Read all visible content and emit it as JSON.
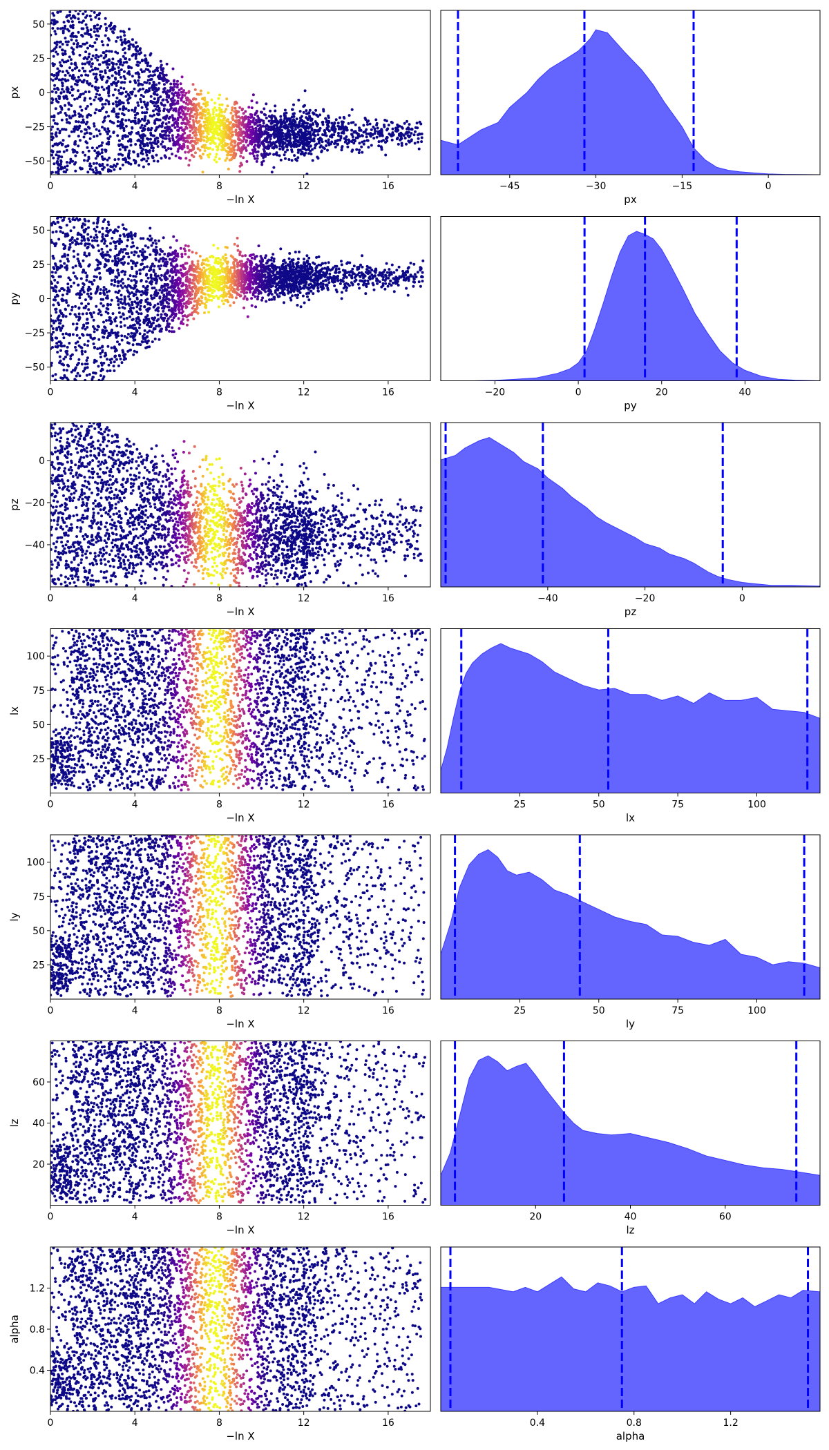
{
  "figure": {
    "background": "#ffffff"
  },
  "colors": {
    "kde_fill": "#6464ff",
    "kde_edge": "#3b3bff",
    "quantile_line": "#0000ff",
    "cmap": "plasma"
  },
  "chart_data": [
    {
      "type": "scatter",
      "name": "trace-px",
      "xlabel": "−ln X",
      "ylabel": "px",
      "xlim": [
        0,
        18
      ],
      "ylim": [
        -60,
        60
      ],
      "xticks": [
        0,
        4,
        8,
        12,
        16
      ],
      "xtick_labels": [
        "0",
        "4",
        "8",
        "12",
        "16"
      ],
      "yticks": [
        -50,
        -25,
        0,
        25,
        50
      ],
      "ytick_labels": [
        "−50",
        "−25",
        "0",
        "25",
        "50"
      ],
      "posterior_center": -30,
      "posterior_spread": 11,
      "initial_range": [
        -60,
        60
      ],
      "max_lnx": 17.6,
      "color_peak_lnx": 7.8,
      "color_width_lnx": 1.4
    },
    {
      "type": "area",
      "name": "kde-px",
      "xlabel": "px",
      "xlim": [
        -57,
        9
      ],
      "ylim": [
        0,
        1.1
      ],
      "xticks": [
        -45,
        -30,
        -15,
        0
      ],
      "xtick_labels": [
        "−45",
        "−30",
        "−15",
        "0"
      ],
      "x": [
        -57,
        -55,
        -54,
        -52,
        -50,
        -47,
        -45,
        -42,
        -40,
        -38,
        -35,
        -33,
        -31,
        -30,
        -28,
        -25,
        -22,
        -20,
        -18,
        -15,
        -13,
        -11,
        -9,
        -7,
        -5,
        -2,
        0,
        3,
        6,
        9
      ],
      "y": [
        0.23,
        0.21,
        0.2,
        0.25,
        0.3,
        0.35,
        0.45,
        0.55,
        0.64,
        0.71,
        0.78,
        0.83,
        0.91,
        0.97,
        0.95,
        0.82,
        0.7,
        0.6,
        0.48,
        0.32,
        0.18,
        0.1,
        0.05,
        0.03,
        0.02,
        0.01,
        0.005,
        0.002,
        0.001,
        0
      ],
      "quantiles": [
        -54,
        -32,
        -13
      ]
    },
    {
      "type": "scatter",
      "name": "trace-py",
      "xlabel": "−ln X",
      "ylabel": "py",
      "xlim": [
        0,
        18
      ],
      "ylim": [
        -60,
        60
      ],
      "xticks": [
        0,
        4,
        8,
        12,
        16
      ],
      "xtick_labels": [
        "0",
        "4",
        "8",
        "12",
        "16"
      ],
      "yticks": [
        -50,
        -25,
        0,
        25,
        50
      ],
      "ytick_labels": [
        "−50",
        "−25",
        "0",
        "25",
        "50"
      ],
      "posterior_center": 16,
      "posterior_spread": 9,
      "initial_range": [
        -60,
        60
      ],
      "max_lnx": 17.7,
      "color_peak_lnx": 7.8,
      "color_width_lnx": 1.4
    },
    {
      "type": "area",
      "name": "kde-py",
      "xlabel": "py",
      "xlim": [
        -33,
        58
      ],
      "ylim": [
        0,
        1.1
      ],
      "xticks": [
        -20,
        0,
        20,
        40
      ],
      "xtick_labels": [
        "−20",
        "0",
        "20",
        "40"
      ],
      "x": [
        -33,
        -25,
        -20,
        -15,
        -10,
        -5,
        -2,
        0,
        2,
        4,
        6,
        8,
        10,
        12,
        14,
        16,
        18,
        20,
        22,
        25,
        28,
        31,
        34,
        37,
        40,
        44,
        48,
        52,
        58
      ],
      "y": [
        0,
        0,
        0.003,
        0.01,
        0.02,
        0.05,
        0.08,
        0.12,
        0.2,
        0.35,
        0.52,
        0.7,
        0.86,
        0.97,
        1.0,
        0.98,
        0.95,
        0.88,
        0.78,
        0.62,
        0.45,
        0.32,
        0.2,
        0.12,
        0.07,
        0.03,
        0.01,
        0.004,
        0
      ],
      "quantiles": [
        1.5,
        16,
        38
      ]
    },
    {
      "type": "scatter",
      "name": "trace-pz",
      "xlabel": "−ln X",
      "ylabel": "pz",
      "xlim": [
        0,
        18
      ],
      "ylim": [
        -60,
        18
      ],
      "xticks": [
        0,
        4,
        8,
        12,
        16
      ],
      "xtick_labels": [
        "0",
        "4",
        "8",
        "12",
        "16"
      ],
      "yticks": [
        -40,
        -20,
        0
      ],
      "ytick_labels": [
        "−40",
        "−20",
        "0"
      ],
      "posterior_center": -35,
      "posterior_spread": 16,
      "initial_range": [
        -60,
        18
      ],
      "max_lnx": 17.6,
      "color_peak_lnx": 7.8,
      "color_width_lnx": 1.4
    },
    {
      "type": "area",
      "name": "kde-pz",
      "xlabel": "pz",
      "xlim": [
        -62,
        16
      ],
      "ylim": [
        0,
        1.1
      ],
      "xticks": [
        -40,
        -20,
        0
      ],
      "xtick_labels": [
        "−40",
        "−20",
        "0"
      ],
      "x": [
        -62,
        -59,
        -57,
        -54,
        -52,
        -50,
        -47,
        -45,
        -42,
        -40,
        -37,
        -35,
        -32,
        -30,
        -28,
        -25,
        -22,
        -20,
        -17,
        -15,
        -12,
        -10,
        -7,
        -5,
        -3,
        0,
        3,
        6,
        10,
        16
      ],
      "y": [
        0.85,
        0.88,
        0.93,
        0.98,
        1.0,
        0.96,
        0.9,
        0.84,
        0.79,
        0.73,
        0.66,
        0.6,
        0.53,
        0.47,
        0.43,
        0.38,
        0.33,
        0.29,
        0.26,
        0.22,
        0.19,
        0.16,
        0.1,
        0.07,
        0.05,
        0.03,
        0.02,
        0.01,
        0.01,
        0.005
      ],
      "quantiles": [
        -61,
        -41,
        -4
      ]
    },
    {
      "type": "scatter",
      "name": "trace-lx",
      "xlabel": "−ln X",
      "ylabel": "lx",
      "xlim": [
        0,
        18
      ],
      "ylim": [
        0,
        120
      ],
      "xticks": [
        0,
        4,
        8,
        12,
        16
      ],
      "xtick_labels": [
        "0",
        "4",
        "8",
        "12",
        "16"
      ],
      "yticks": [
        25,
        50,
        75,
        100
      ],
      "ytick_labels": [
        "25",
        "50",
        "75",
        "100"
      ],
      "posterior_center": null,
      "posterior_spread": null,
      "initial_range": [
        2,
        120
      ],
      "max_lnx": 17.8,
      "color_peak_lnx": 7.8,
      "color_width_lnx": 1.4
    },
    {
      "type": "area",
      "name": "kde-lx",
      "xlabel": "lx",
      "xlim": [
        0,
        120
      ],
      "ylim": [
        0,
        1.1
      ],
      "xticks": [
        25,
        50,
        75,
        100
      ],
      "xtick_labels": [
        "25",
        "50",
        "75",
        "100"
      ],
      "x": [
        0,
        2,
        4,
        6,
        8,
        10,
        13,
        16,
        19,
        22,
        25,
        28,
        32,
        36,
        40,
        45,
        50,
        55,
        60,
        65,
        70,
        75,
        80,
        85,
        90,
        95,
        100,
        105,
        110,
        115,
        120
      ],
      "y": [
        0.15,
        0.3,
        0.5,
        0.68,
        0.8,
        0.87,
        0.93,
        0.97,
        1.0,
        0.97,
        0.95,
        0.93,
        0.88,
        0.81,
        0.77,
        0.72,
        0.69,
        0.7,
        0.66,
        0.66,
        0.62,
        0.65,
        0.6,
        0.67,
        0.62,
        0.62,
        0.64,
        0.56,
        0.55,
        0.54,
        0.5
      ],
      "quantiles": [
        6.5,
        53,
        116
      ]
    },
    {
      "type": "scatter",
      "name": "trace-ly",
      "xlabel": "−ln X",
      "ylabel": "ly",
      "xlim": [
        0,
        18
      ],
      "ylim": [
        0,
        120
      ],
      "xticks": [
        0,
        4,
        8,
        12,
        16
      ],
      "xtick_labels": [
        "0",
        "4",
        "8",
        "12",
        "16"
      ],
      "yticks": [
        25,
        50,
        75,
        100
      ],
      "ytick_labels": [
        "25",
        "50",
        "75",
        "100"
      ],
      "posterior_center": null,
      "posterior_spread": null,
      "initial_range": [
        2,
        120
      ],
      "max_lnx": 17.7,
      "color_peak_lnx": 7.8,
      "color_width_lnx": 1.4
    },
    {
      "type": "area",
      "name": "kde-ly",
      "xlabel": "ly",
      "xlim": [
        0,
        120
      ],
      "ylim": [
        0,
        1.1
      ],
      "xticks": [
        25,
        50,
        75,
        100
      ],
      "xtick_labels": [
        "25",
        "50",
        "75",
        "100"
      ],
      "x": [
        0,
        3,
        6,
        9,
        12,
        15,
        18,
        21,
        24,
        28,
        32,
        36,
        40,
        45,
        50,
        55,
        60,
        65,
        70,
        75,
        80,
        85,
        90,
        95,
        100,
        105,
        110,
        115,
        120
      ],
      "y": [
        0.3,
        0.5,
        0.75,
        0.9,
        0.97,
        1.0,
        0.95,
        0.86,
        0.83,
        0.85,
        0.8,
        0.73,
        0.7,
        0.65,
        0.6,
        0.55,
        0.52,
        0.5,
        0.43,
        0.42,
        0.38,
        0.36,
        0.4,
        0.3,
        0.28,
        0.23,
        0.25,
        0.24,
        0.21
      ],
      "quantiles": [
        4.5,
        44,
        115
      ]
    },
    {
      "type": "scatter",
      "name": "trace-lz",
      "xlabel": "−ln X",
      "ylabel": "lz",
      "xlim": [
        0,
        18
      ],
      "ylim": [
        0,
        80
      ],
      "xticks": [
        0,
        4,
        8,
        12,
        16
      ],
      "xtick_labels": [
        "0",
        "4",
        "8",
        "12",
        "16"
      ],
      "yticks": [
        20,
        40,
        60
      ],
      "ytick_labels": [
        "20",
        "40",
        "60"
      ],
      "posterior_center": null,
      "posterior_spread": null,
      "initial_range": [
        1,
        80
      ],
      "max_lnx": 17.8,
      "color_peak_lnx": 7.8,
      "color_width_lnx": 1.4
    },
    {
      "type": "area",
      "name": "kde-lz",
      "xlabel": "lz",
      "xlim": [
        0,
        80
      ],
      "ylim": [
        0,
        1.1
      ],
      "xticks": [
        20,
        40,
        60
      ],
      "xtick_labels": [
        "20",
        "40",
        "60"
      ],
      "x": [
        0,
        2,
        4,
        6,
        8,
        10,
        12,
        14,
        16,
        18,
        20,
        22,
        24,
        26,
        28,
        30,
        33,
        36,
        40,
        44,
        48,
        52,
        56,
        60,
        64,
        68,
        72,
        76,
        80
      ],
      "y": [
        0.2,
        0.35,
        0.6,
        0.85,
        0.97,
        1.0,
        0.96,
        0.9,
        0.93,
        0.95,
        0.87,
        0.78,
        0.7,
        0.62,
        0.55,
        0.5,
        0.48,
        0.47,
        0.48,
        0.45,
        0.42,
        0.38,
        0.33,
        0.3,
        0.27,
        0.25,
        0.24,
        0.22,
        0.2
      ],
      "quantiles": [
        3,
        26,
        75
      ]
    },
    {
      "type": "scatter",
      "name": "trace-alpha",
      "xlabel": "−ln X",
      "ylabel": "alpha",
      "xlim": [
        0,
        18
      ],
      "ylim": [
        0,
        1.6
      ],
      "xticks": [
        0,
        4,
        8,
        12,
        16
      ],
      "xtick_labels": [
        "0",
        "4",
        "8",
        "12",
        "16"
      ],
      "yticks": [
        0.4,
        0.8,
        1.2
      ],
      "ytick_labels": [
        "0.4",
        "0.8",
        "1.2"
      ],
      "posterior_center": null,
      "posterior_spread": null,
      "initial_range": [
        0,
        1.6
      ],
      "max_lnx": 17.6,
      "color_peak_lnx": 7.8,
      "color_width_lnx": 1.4
    },
    {
      "type": "area",
      "name": "kde-alpha",
      "xlabel": "alpha",
      "xlim": [
        0,
        1.57
      ],
      "ylim": [
        0,
        1.1
      ],
      "xticks": [
        0.4,
        0.8,
        1.2
      ],
      "xtick_labels": [
        "0.4",
        "0.8",
        "1.2"
      ],
      "x": [
        0,
        0.1,
        0.2,
        0.3,
        0.35,
        0.4,
        0.45,
        0.5,
        0.55,
        0.6,
        0.65,
        0.7,
        0.75,
        0.8,
        0.85,
        0.9,
        0.95,
        1.0,
        1.05,
        1.1,
        1.15,
        1.2,
        1.25,
        1.3,
        1.35,
        1.4,
        1.45,
        1.5,
        1.57
      ],
      "y": [
        0.83,
        0.83,
        0.83,
        0.8,
        0.83,
        0.8,
        0.85,
        0.9,
        0.82,
        0.8,
        0.86,
        0.84,
        0.8,
        0.83,
        0.84,
        0.72,
        0.76,
        0.78,
        0.72,
        0.8,
        0.75,
        0.72,
        0.76,
        0.7,
        0.74,
        0.78,
        0.76,
        0.81,
        0.8
      ],
      "quantiles": [
        0.04,
        0.75,
        1.52
      ]
    }
  ]
}
